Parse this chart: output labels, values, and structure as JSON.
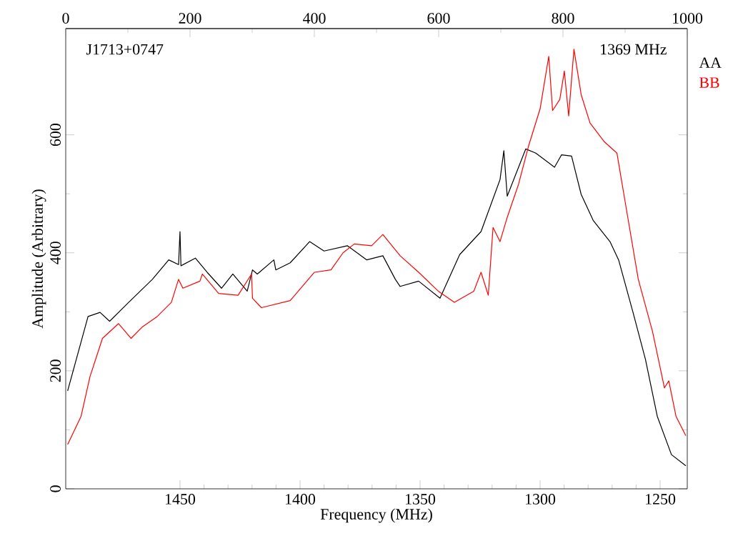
{
  "chart_data": {
    "type": "line",
    "xlabel": "Frequency (MHz)",
    "ylabel": "Amplitude (Arbitrary)",
    "xlim": [
      1497.6,
      1238.7
    ],
    "xticks": [
      1450,
      1400,
      1350,
      1300,
      1250
    ],
    "x2lim": [
      0,
      1000
    ],
    "x2ticks": [
      0,
      200,
      400,
      600,
      800,
      1000
    ],
    "ylim": [
      0,
      780
    ],
    "yticks": [
      0,
      200,
      400,
      600
    ],
    "legend": "top right",
    "grid": false,
    "marker": "none",
    "line_style": "solid",
    "annotations": [
      "J1713+0747",
      "1369 MHz"
    ],
    "series": [
      {
        "name": "AA",
        "color": "#000000",
        "x": [
          1496.8,
          1488.3,
          1483.3,
          1479.3,
          1471.4,
          1461.5,
          1454.7,
          1450.6,
          1450.0,
          1449.6,
          1443.6,
          1438.7,
          1432.7,
          1428.0,
          1422.0,
          1419.8,
          1417.8,
          1410.9,
          1410.1,
          1404.1,
          1396.0,
          1390.0,
          1380.3,
          1372.2,
          1365.5,
          1360.3,
          1358.3,
          1350.6,
          1341.7,
          1333.5,
          1324.6,
          1316.7,
          1315.1,
          1313.7,
          1306.0,
          1301.8,
          1294.0,
          1291.1,
          1286.9,
          1282.9,
          1277.9,
          1270.9,
          1267.3,
          1261.3,
          1256.1,
          1251.2,
          1245.3,
          1239.3
        ],
        "values": [
          166,
          292,
          299,
          284,
          316,
          355,
          388,
          380,
          436,
          378,
          391,
          367,
          340,
          364,
          335,
          371,
          364,
          388,
          371,
          383,
          419,
          403,
          412,
          388,
          395,
          355,
          343,
          352,
          323,
          397,
          436,
          524,
          573,
          496,
          576,
          569,
          545,
          566,
          564,
          499,
          455,
          419,
          388,
          299,
          219,
          123,
          58,
          39
        ]
      },
      {
        "name": "BB",
        "color": "#ff0000",
        "x": [
          1496.8,
          1491.2,
          1487.5,
          1482.3,
          1475.6,
          1470.4,
          1465.5,
          1459.5,
          1453.6,
          1450.6,
          1448.8,
          1441.7,
          1440.7,
          1433.9,
          1425.8,
          1420.2,
          1419.8,
          1416.1,
          1404.1,
          1394.0,
          1387.1,
          1382.1,
          1377.4,
          1370.2,
          1365.5,
          1358.3,
          1350.6,
          1342.4,
          1335.7,
          1327.6,
          1324.6,
          1321.6,
          1319.6,
          1316.7,
          1313.7,
          1309.0,
          1304.8,
          1300.0,
          1296.4,
          1294.8,
          1291.8,
          1289.9,
          1288.1,
          1285.9,
          1282.9,
          1279.2,
          1273.2,
          1268.0,
          1265.1,
          1259.1,
          1253.2,
          1248.2,
          1246.4,
          1243.4,
          1239.3
        ],
        "values": [
          75,
          123,
          190,
          255,
          280,
          255,
          275,
          292,
          316,
          355,
          340,
          352,
          364,
          331,
          328,
          364,
          323,
          307,
          319,
          367,
          371,
          400,
          415,
          412,
          431,
          395,
          367,
          335,
          316,
          335,
          367,
          328,
          443,
          419,
          460,
          516,
          581,
          644,
          733,
          641,
          660,
          708,
          632,
          745,
          668,
          620,
          588,
          569,
          499,
          355,
          267,
          171,
          183,
          123,
          90
        ]
      }
    ]
  }
}
